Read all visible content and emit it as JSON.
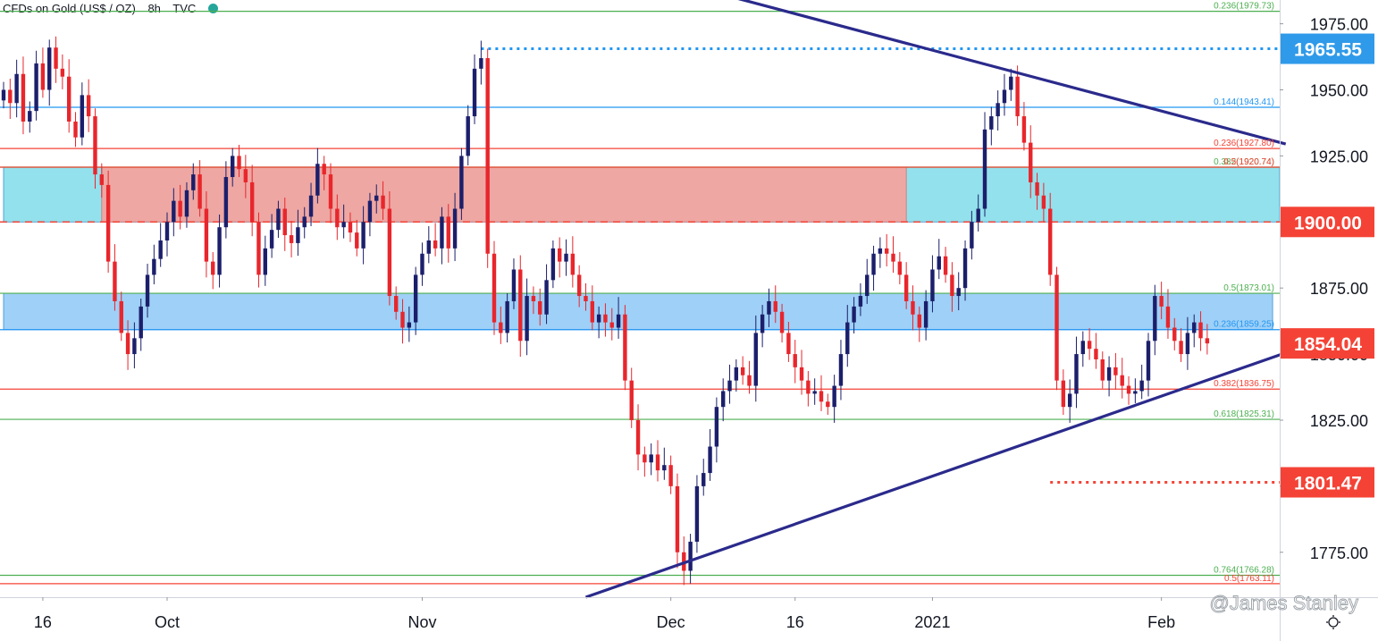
{
  "header": {
    "symbol": "CFDs on Gold (US$ / OZ)",
    "interval": "8h",
    "source": "TVC",
    "status_color": "#26a69a"
  },
  "settings_icon": "gear-icon",
  "watermark": "@James Stanley",
  "colors": {
    "up": "#1b1f6b",
    "down": "#e8262c",
    "green_line": "#4caf50",
    "blue_line": "#2196f3",
    "red_line": "#f44336",
    "trendline": "#2a2a8c",
    "zone_cyan": "#93e1ec",
    "zone_red": "#f8a19c",
    "zone_blue": "#9fd0f7",
    "tag_blue": "#2f9ae9",
    "tag_red": "#f44336"
  },
  "chart_data": {
    "type": "candlestick",
    "title": "CFDs on Gold (US$ / OZ)",
    "timeframe": "8h",
    "ylim": [
      1758,
      1984
    ],
    "y_ticks": [
      "1975.00",
      "1950.00",
      "1925.00",
      "1900.00",
      "1875.00",
      "1850.00",
      "1825.00",
      "1800.00",
      "1775.00"
    ],
    "x_ticks": [
      {
        "label": "16",
        "idx": 6
      },
      {
        "label": "Oct",
        "idx": 25
      },
      {
        "label": "Nov",
        "idx": 64
      },
      {
        "label": "Dec",
        "idx": 102
      },
      {
        "label": "16",
        "idx": 121
      },
      {
        "label": "2021",
        "idx": 142
      },
      {
        "label": "Feb",
        "idx": 177
      }
    ],
    "key_levels": [
      {
        "label": "1965.55",
        "value": 1965.55,
        "style": "dotted-blue",
        "tag": "blue",
        "from_idx": 73
      },
      {
        "label": "1900.00",
        "value": 1900.0,
        "style": "dashed-red",
        "tag": "red",
        "from_idx": 0
      },
      {
        "label": "1854.04",
        "value": 1854.04,
        "style": "price",
        "tag": "red",
        "from_idx": 172
      },
      {
        "label": "1801.47",
        "value": 1801.47,
        "style": "dotted-red",
        "tag": "red",
        "from_idx": 160
      }
    ],
    "fib_levels": [
      {
        "label": "0.236(1979.73)",
        "value": 1979.73,
        "color": "green"
      },
      {
        "label": "0.144(1943.41)",
        "value": 1943.41,
        "color": "blue"
      },
      {
        "label": "0.236(1927.80)",
        "value": 1927.8,
        "color": "red"
      },
      {
        "label": "0.382(1920.74)",
        "value": 1920.74,
        "color": "green"
      },
      {
        "label": "0.5(1920.74)",
        "value": 1920.74,
        "color": "red"
      },
      {
        "label": "0.5(1873.01)",
        "value": 1873.01,
        "color": "green"
      },
      {
        "label": "0.236(1859.25)",
        "value": 1859.25,
        "color": "blue"
      },
      {
        "label": "0.382(1836.75)",
        "value": 1836.75,
        "color": "red"
      },
      {
        "label": "0.618(1825.31)",
        "value": 1825.31,
        "color": "green"
      },
      {
        "label": "0.764(1766.28)",
        "value": 1766.28,
        "color": "green"
      },
      {
        "label": "0.5(1763.11)",
        "value": 1763.11,
        "color": "red"
      }
    ],
    "zones": [
      {
        "name": "resistance-zone",
        "from_idx": 0,
        "to_idx": 196,
        "low": 1900,
        "high": 1920.74,
        "color": "cyan"
      },
      {
        "name": "supply-zone",
        "from_idx": 15,
        "to_idx": 138,
        "low": 1900,
        "high": 1920.74,
        "color": "red"
      },
      {
        "name": "support-zone",
        "from_idx": 0,
        "to_idx": 194,
        "low": 1859.25,
        "high": 1873.01,
        "color": "blue"
      }
    ],
    "trendlines": [
      {
        "name": "descending-resistance",
        "from": {
          "idx": 107,
          "value": 1988
        },
        "to": {
          "idx": 196,
          "value": 1929.5
        }
      },
      {
        "name": "ascending-support",
        "from": {
          "idx": 89,
          "value": 1758
        },
        "to": {
          "idx": 196,
          "value": 1850.5
        }
      }
    ],
    "closes": [
      1950,
      1945,
      1956,
      1938,
      1942,
      1960,
      1950,
      1966,
      1958,
      1955,
      1938,
      1932,
      1948,
      1940,
      1918,
      1914,
      1885,
      1870,
      1858,
      1850,
      1856,
      1868,
      1880,
      1886,
      1893,
      1900,
      1908,
      1902,
      1912,
      1918,
      1905,
      1885,
      1880,
      1898,
      1917,
      1925,
      1920,
      1915,
      1900,
      1880,
      1890,
      1897,
      1905,
      1895,
      1892,
      1898,
      1902,
      1910,
      1922,
      1918,
      1905,
      1898,
      1900,
      1896,
      1890,
      1900,
      1908,
      1910,
      1905,
      1872,
      1866,
      1860,
      1862,
      1880,
      1888,
      1893,
      1890,
      1902,
      1890,
      1905,
      1925,
      1940,
      1958,
      1962,
      1888,
      1862,
      1858,
      1870,
      1882,
      1855,
      1872,
      1870,
      1865,
      1878,
      1890,
      1885,
      1888,
      1880,
      1872,
      1870,
      1862,
      1865,
      1862,
      1860,
      1865,
      1840,
      1825,
      1812,
      1809,
      1812,
      1806,
      1808,
      1800,
      1775,
      1768,
      1779,
      1800,
      1805,
      1815,
      1830,
      1836,
      1840,
      1845,
      1842,
      1838,
      1858,
      1865,
      1870,
      1866,
      1858,
      1850,
      1845,
      1840,
      1835,
      1836,
      1832,
      1830,
      1838,
      1850,
      1862,
      1868,
      1872,
      1880,
      1888,
      1890,
      1888,
      1885,
      1880,
      1870,
      1865,
      1860,
      1870,
      1882,
      1887,
      1880,
      1872,
      1875,
      1890,
      1900,
      1905,
      1935,
      1940,
      1945,
      1950,
      1955,
      1940,
      1930,
      1915,
      1910,
      1905,
      1880,
      1840,
      1830,
      1835,
      1850,
      1855,
      1852,
      1848,
      1840,
      1845,
      1842,
      1838,
      1835,
      1836,
      1840,
      1855,
      1872,
      1868,
      1860,
      1855,
      1850,
      1858,
      1862,
      1856,
      1854.04
    ]
  }
}
